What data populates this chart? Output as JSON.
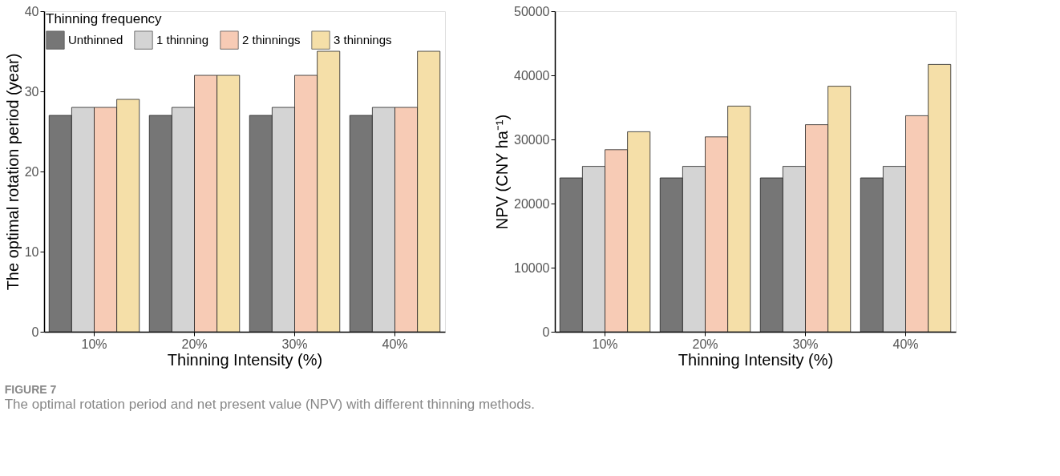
{
  "chart_data": [
    {
      "type": "bar",
      "xlabel": "Thinning Intensity (%)",
      "ylabel": "The optimal rotation period (year)",
      "legend_title": "Thinning frequency",
      "legend": "top left",
      "grid": false,
      "categories": [
        "10%",
        "20%",
        "30%",
        "40%"
      ],
      "ylim": [
        0,
        40
      ],
      "yticks": [
        0,
        10,
        20,
        30,
        40
      ],
      "series": [
        {
          "name": "Unthinned",
          "color": "#767676",
          "values": [
            27,
            27,
            27,
            27
          ]
        },
        {
          "name": "1 thinning",
          "color": "#d4d4d4",
          "values": [
            28,
            28,
            28,
            28
          ]
        },
        {
          "name": "2 thinnings",
          "color": "#f7cbb5",
          "values": [
            28,
            32,
            32,
            28
          ]
        },
        {
          "name": "3 thinnings",
          "color": "#f5dfa8",
          "values": [
            29,
            32,
            35,
            35
          ]
        }
      ],
      "annotations": [
        "FIGURE 7",
        "The optimal rotation period and net present value (NPV) with different thinning methods."
      ]
    },
    {
      "type": "bar",
      "xlabel": "Thinning Intensity (%)",
      "ylabel": "NPV (CNY ha⁻¹)",
      "legend": false,
      "grid": false,
      "categories": [
        "10%",
        "20%",
        "30%",
        "40%"
      ],
      "ylim": [
        0,
        50000
      ],
      "yticks": [
        0,
        10000,
        20000,
        30000,
        40000,
        50000
      ],
      "series": [
        {
          "color": "#767676",
          "values": [
            24000,
            24000,
            24000,
            24000
          ]
        },
        {
          "color": "#d4d4d4",
          "values": [
            25800,
            25800,
            25800,
            25800
          ]
        },
        {
          "color": "#f7cbb5",
          "values": [
            28400,
            30400,
            32300,
            33700
          ]
        },
        {
          "color": "#f5dfa8",
          "values": [
            31200,
            35200,
            38300,
            41700
          ]
        }
      ]
    }
  ]
}
